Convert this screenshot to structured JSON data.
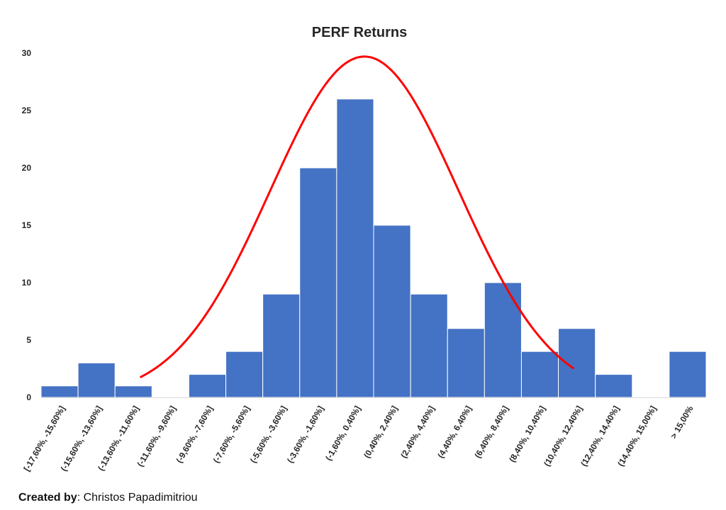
{
  "chart_data": {
    "type": "bar",
    "title": "PERF Returns",
    "xlabel": "",
    "ylabel": "",
    "ylim": [
      0,
      30
    ],
    "yticks": [
      0,
      5,
      10,
      15,
      20,
      25,
      30
    ],
    "categories": [
      "[-17,60%, -15,60%]",
      "(-15,60%, -13,60%]",
      "(-13,60%, -11,60%]",
      "(-11,60%, -9,60%]",
      "(-9,60%, -7,60%]",
      "(-7,60%, -5,60%]",
      "(-5,60%, -3,60%]",
      "(-3,60%, -1,60%]",
      "(-1,60%, 0,40%]",
      "(0,40%, 2,40%]",
      "(2,40%, 4,40%]",
      "(4,40%, 6,40%]",
      "(6,40%, 8,40%]",
      "(8,40%, 10,40%]",
      "(10,40%, 12,40%]",
      "(12,40%, 14,40%]",
      "(14,40%, 15,00%]",
      "> 15,00%"
    ],
    "values": [
      1,
      3,
      1,
      0,
      2,
      4,
      9,
      20,
      26,
      15,
      9,
      6,
      10,
      4,
      6,
      2,
      0,
      4
    ],
    "bar_color": "#4472C4",
    "curve_color": "#FF0000",
    "curve": {
      "type": "normal",
      "peak": 29.7,
      "center_bin": 8.75,
      "sigma_bins": 2.55,
      "from_bin": 2.7,
      "to_bin": 14.4
    },
    "grid": false,
    "legend": "none"
  },
  "credit": {
    "label": "Created by",
    "name": ": Christos Papadimitriou"
  }
}
